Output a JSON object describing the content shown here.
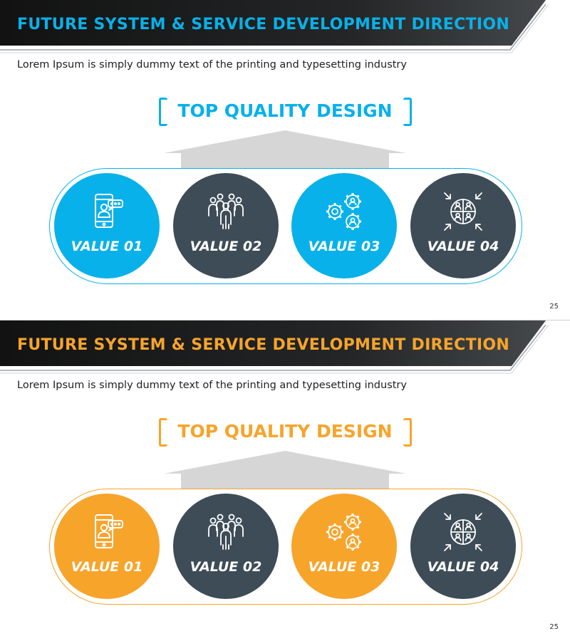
{
  "slides": [
    {
      "title": "FUTURE SYSTEM & SERVICE DEVELOPMENT DIRECTION",
      "subtitle": "Lorem Ipsum is simply dummy text of the printing and typesetting industry",
      "top_title": "TOP QUALITY DESIGN",
      "accent_color": "#08b1e9",
      "secondary_color": "#3d4c56",
      "values": [
        {
          "label": "VALUE 01",
          "icon": "mobile-chat-icon",
          "color": "accent"
        },
        {
          "label": "VALUE 02",
          "icon": "team-group-icon",
          "color": "secondary"
        },
        {
          "label": "VALUE 03",
          "icon": "gears-people-icon",
          "color": "accent"
        },
        {
          "label": "VALUE 04",
          "icon": "four-quadrant-people-icon",
          "color": "secondary"
        }
      ],
      "page_number": "25"
    },
    {
      "title": "FUTURE SYSTEM & SERVICE DEVELOPMENT DIRECTION",
      "subtitle": "Lorem Ipsum is simply dummy text of the printing and typesetting industry",
      "top_title": "TOP QUALITY DESIGN",
      "accent_color": "#f7a42b",
      "secondary_color": "#3d4c56",
      "values": [
        {
          "label": "VALUE 01",
          "icon": "mobile-chat-icon",
          "color": "accent"
        },
        {
          "label": "VALUE 02",
          "icon": "team-group-icon",
          "color": "secondary"
        },
        {
          "label": "VALUE 03",
          "icon": "gears-people-icon",
          "color": "accent"
        },
        {
          "label": "VALUE 04",
          "icon": "four-quadrant-people-icon",
          "color": "secondary"
        }
      ],
      "page_number": "25"
    }
  ]
}
